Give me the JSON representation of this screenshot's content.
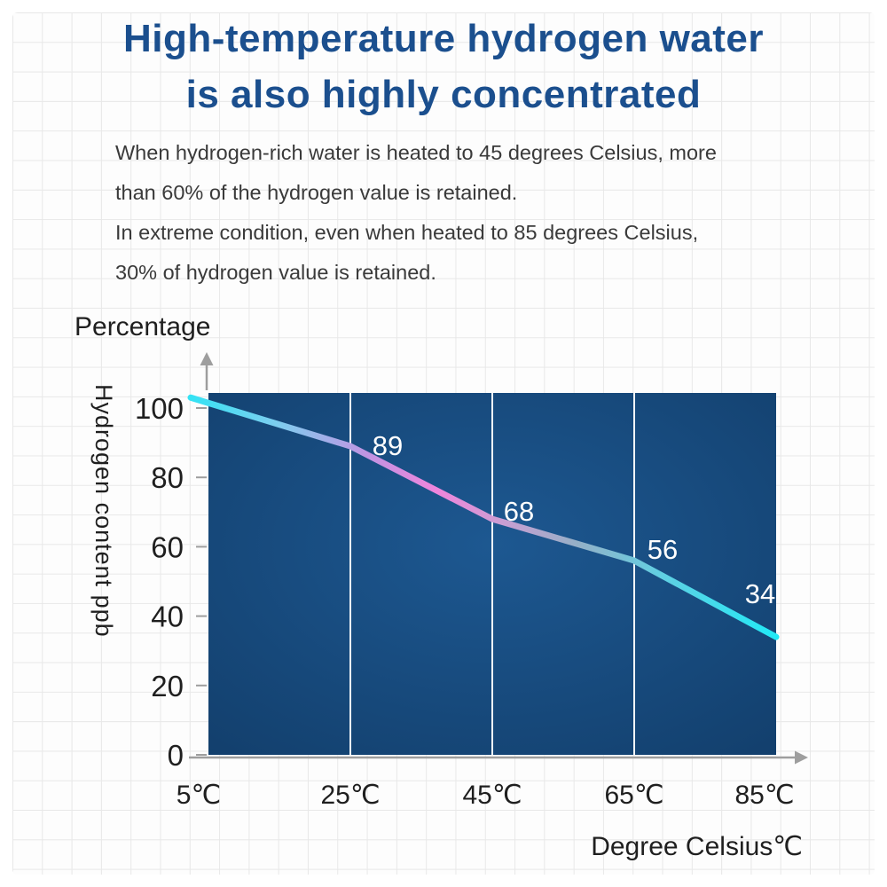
{
  "header": {
    "title_line1": "High-temperature hydrogen water",
    "title_line2": "is also highly concentrated",
    "description_lines": [
      "When hydrogen-rich water is heated to 45 degrees Celsius, more",
      "than 60% of the hydrogen value is retained.",
      "In extreme condition, even when heated to 85 degrees Celsius,",
      "30% of hydrogen value is retained."
    ]
  },
  "chart_data": {
    "type": "line",
    "title": "Percentage",
    "ylabel": "Hydrogen content ppb",
    "xlabel": "Degree Celsius℃",
    "categories": [
      "5℃",
      "25℃",
      "45℃",
      "65℃",
      "85℃"
    ],
    "x_values_celsius": [
      5,
      25,
      45,
      65,
      85
    ],
    "values": [
      103,
      89,
      68,
      56,
      34
    ],
    "point_labels": [
      "",
      "89",
      "68",
      "56",
      "34"
    ],
    "y_ticks": [
      0,
      20,
      40,
      60,
      80,
      100
    ],
    "ylim": [
      0,
      104
    ],
    "legend": "none",
    "grid": "vertical-white-lines-on-panel",
    "colors": {
      "title_blue": "#1b4f8e",
      "panel_center": "#1d5891",
      "panel_edge": "#123e6b",
      "axis_gray": "#9e9e9e",
      "point_label_white": "#ffffff",
      "line_gradient": [
        {
          "offset": 0,
          "color": "#34e3f4"
        },
        {
          "offset": 0.15,
          "color": "#7fcdef"
        },
        {
          "offset": 0.3,
          "color": "#c094e2"
        },
        {
          "offset": 0.42,
          "color": "#ee85dc"
        },
        {
          "offset": 0.52,
          "color": "#cf9cd4"
        },
        {
          "offset": 0.66,
          "color": "#95b0c7"
        },
        {
          "offset": 0.8,
          "color": "#62cfe2"
        },
        {
          "offset": 1,
          "color": "#21e9f6"
        }
      ]
    }
  }
}
